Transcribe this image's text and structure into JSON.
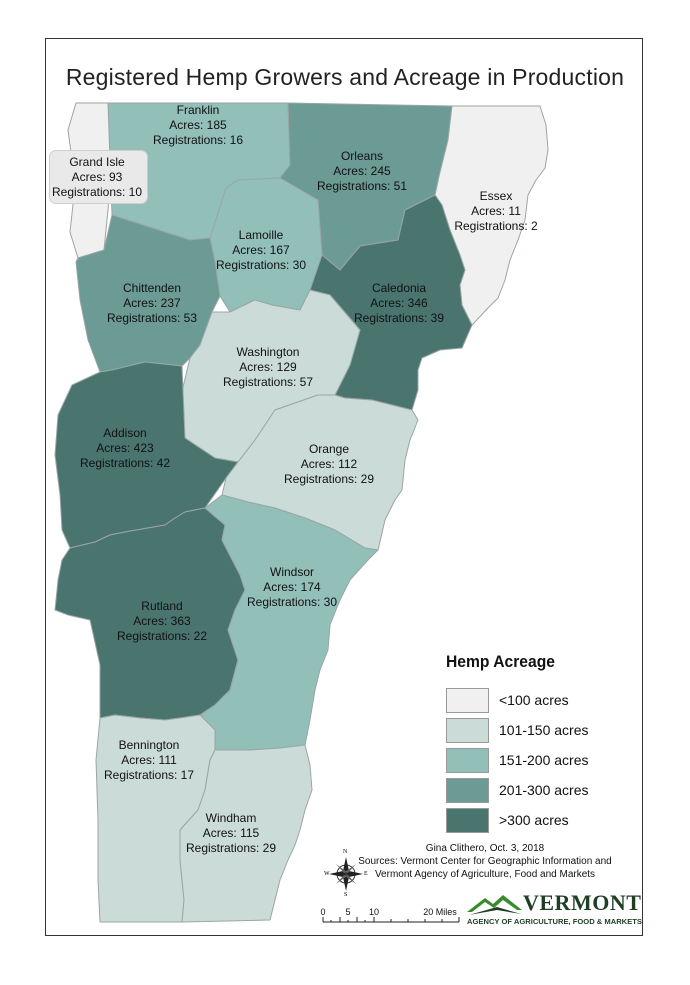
{
  "title": "Registered Hemp Growers and Acreage in Production",
  "counties": [
    {
      "name": "Franklin",
      "acres_text": "Acres: 185",
      "reg_text": "Registrations: 16",
      "acres": 185,
      "registrations": 16
    },
    {
      "name": "Orleans",
      "acres_text": "Acres: 245",
      "reg_text": "Registrations: 51",
      "acres": 245,
      "registrations": 51
    },
    {
      "name": "Grand Isle",
      "acres_text": "Acres: 93",
      "reg_text": "Registrations: 10",
      "acres": 93,
      "registrations": 10
    },
    {
      "name": "Essex",
      "acres_text": "Acres: 11",
      "reg_text": "Registrations: 2",
      "acres": 11,
      "registrations": 2
    },
    {
      "name": "Lamoille",
      "acres_text": "Acres: 167",
      "reg_text": "Registrations: 30",
      "acres": 167,
      "registrations": 30
    },
    {
      "name": "Chittenden",
      "acres_text": "Acres: 237",
      "reg_text": "Registrations: 53",
      "acres": 237,
      "registrations": 53
    },
    {
      "name": "Caledonia",
      "acres_text": "Acres: 346",
      "reg_text": "Registrations: 39",
      "acres": 346,
      "registrations": 39
    },
    {
      "name": "Washington",
      "acres_text": "Acres: 129",
      "reg_text": "Registrations: 57",
      "acres": 129,
      "registrations": 57
    },
    {
      "name": "Addison",
      "acres_text": "Acres: 423",
      "reg_text": "Registrations: 42",
      "acres": 423,
      "registrations": 42
    },
    {
      "name": "Orange",
      "acres_text": "Acres: 112",
      "reg_text": "Registrations: 29",
      "acres": 112,
      "registrations": 29
    },
    {
      "name": "Windsor",
      "acres_text": "Acres: 174",
      "reg_text": "Registrations: 30",
      "acres": 174,
      "registrations": 30
    },
    {
      "name": "Rutland",
      "acres_text": "Acres: 363",
      "reg_text": "Registrations: 22",
      "acres": 363,
      "registrations": 22
    },
    {
      "name": "Bennington",
      "acres_text": "Acres: 111",
      "reg_text": "Registrations: 17",
      "acres": 111,
      "registrations": 17
    },
    {
      "name": "Windham",
      "acres_text": "Acres: 115",
      "reg_text": "Registrations: 29",
      "acres": 115,
      "registrations": 29
    }
  ],
  "legend": {
    "title": "Hemp Acreage",
    "items": [
      {
        "label": "<100 acres",
        "color": "#f0f0f0"
      },
      {
        "label": "101-150 acres",
        "color": "#cbdcd8"
      },
      {
        "label": "151-200 acres",
        "color": "#93bfb9"
      },
      {
        "label": "201-300 acres",
        "color": "#6c9a94"
      },
      {
        "label": ">300 acres",
        "color": "#4a756f"
      }
    ]
  },
  "credits": {
    "author": "Gina Clithero, Oct. 3, 2018",
    "source1": "Sources: Vermont Center for Geographic Information and",
    "source2": "Vermont Agency of Agriculture, Food and Markets"
  },
  "scale": {
    "ticks": [
      "0",
      "5",
      "10",
      "20 Miles"
    ]
  },
  "compass": {
    "n": "N",
    "s": "S",
    "e": "E",
    "w": "W"
  },
  "logo": {
    "word": "VERMONT",
    "subtitle": "AGENCY OF AGRICULTURE, FOOD & MARKETS",
    "green": "#3a8a2e",
    "dark": "#1e3f24"
  }
}
